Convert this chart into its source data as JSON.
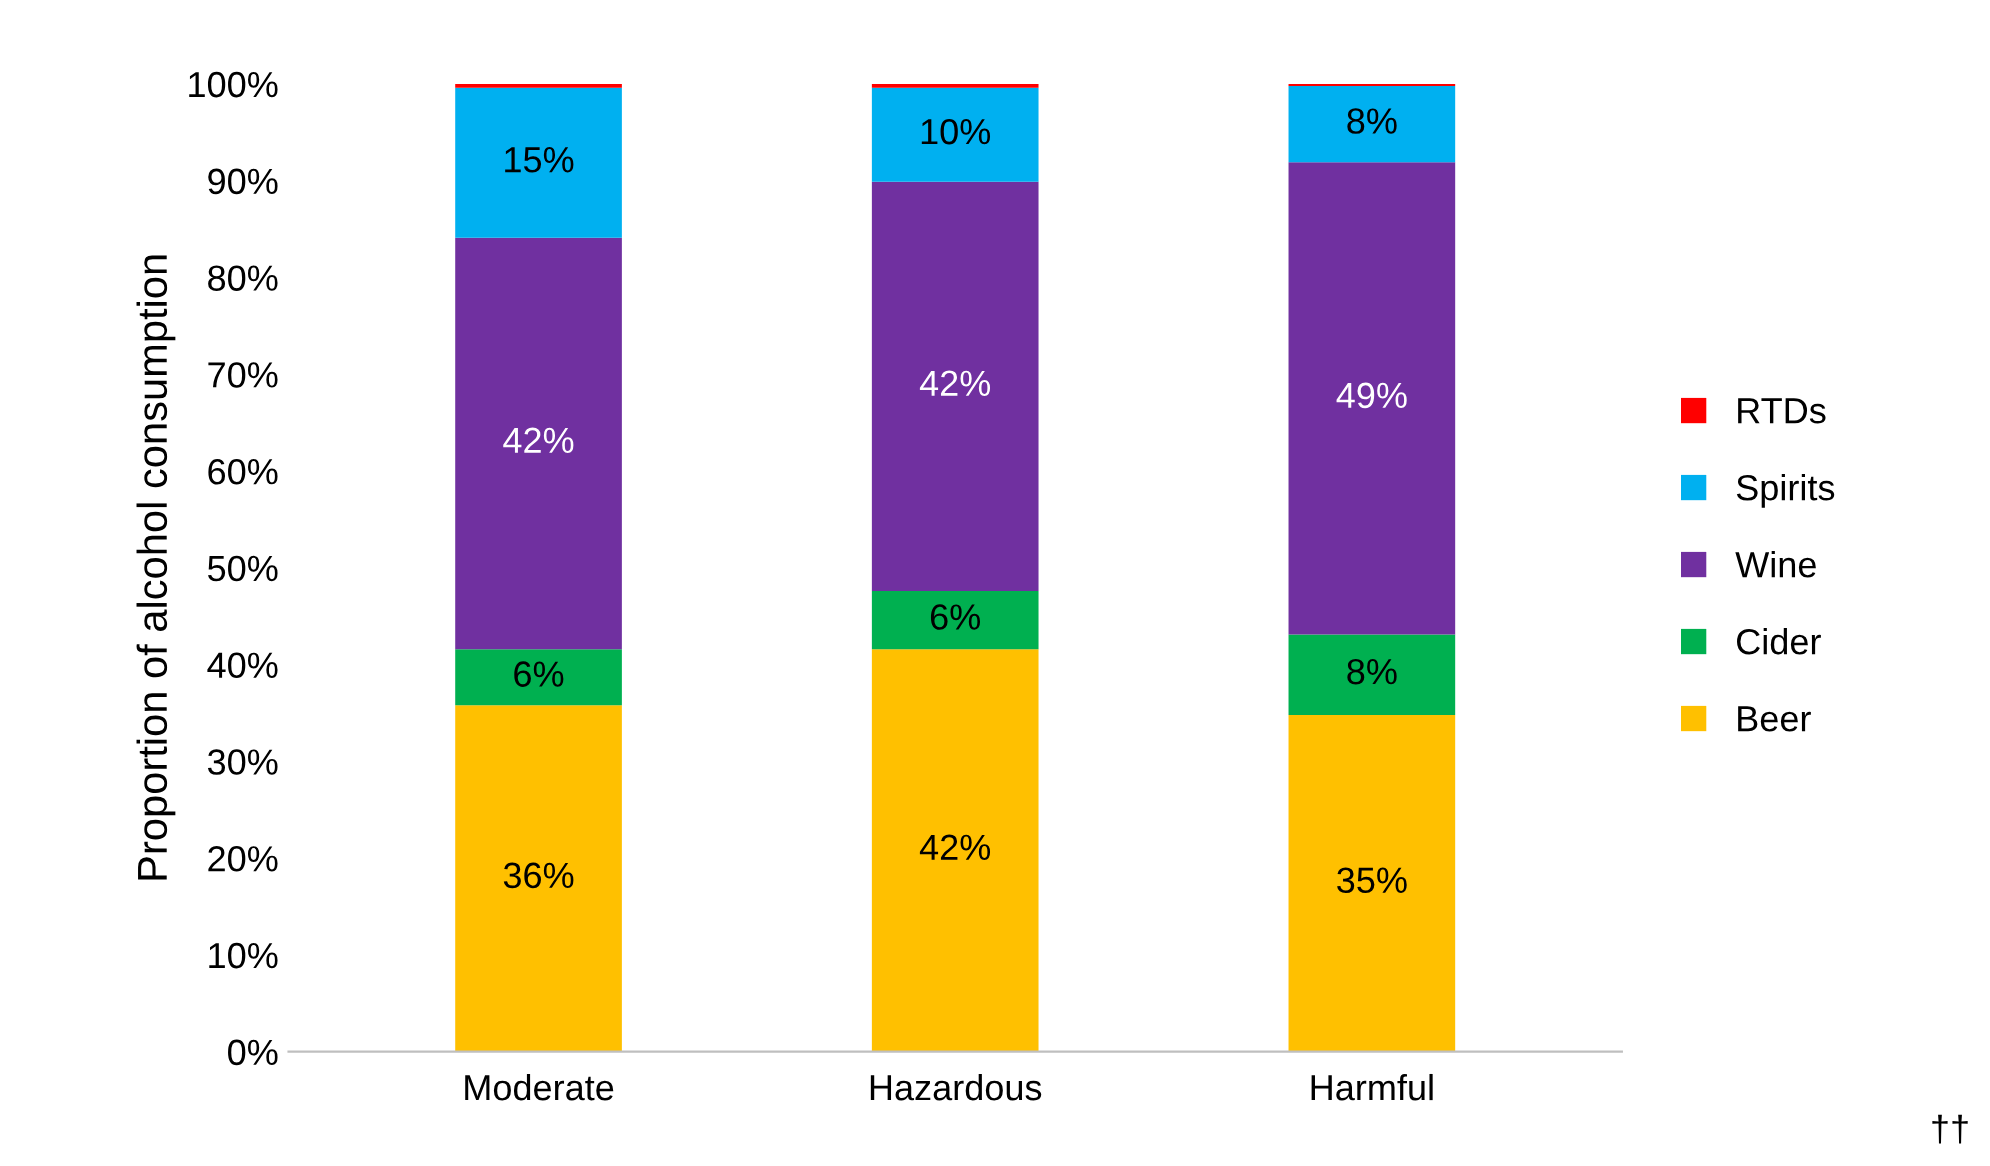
{
  "chart_data": {
    "type": "bar",
    "stacked": true,
    "ylabel": "Proportion of alcohol consumption",
    "categories": [
      "Moderate",
      "Hazardous",
      "Harmful"
    ],
    "series": [
      {
        "name": "Beer",
        "color": "#ffc000",
        "values": [
          35.8,
          41.6,
          34.8
        ],
        "value_labels": [
          "36%",
          "42%",
          "35%"
        ]
      },
      {
        "name": "Cider",
        "color": "#00b050",
        "values": [
          5.8,
          6.0,
          8.3
        ],
        "value_labels": [
          "6%",
          "6%",
          "8%"
        ]
      },
      {
        "name": "Wine",
        "color": "#7030a0",
        "values": [
          42.5,
          42.3,
          48.8
        ],
        "value_labels": [
          "42%",
          "42%",
          "49%"
        ]
      },
      {
        "name": "Spirits",
        "color": "#00b0f0",
        "values": [
          15.5,
          9.7,
          7.9
        ],
        "value_labels": [
          "15%",
          "10%",
          "8%"
        ]
      },
      {
        "name": "RTDs",
        "color": "#ff0000",
        "values": [
          0.4,
          0.4,
          0.2
        ],
        "value_labels": [
          null,
          null,
          null
        ]
      }
    ],
    "ylim": [
      0,
      100
    ],
    "yticks": [
      {
        "value": 0,
        "label": "0%"
      },
      {
        "value": 10,
        "label": "10%"
      },
      {
        "value": 20,
        "label": "20%"
      },
      {
        "value": 30,
        "label": "30%"
      },
      {
        "value": 40,
        "label": "40%"
      },
      {
        "value": 50,
        "label": "50%"
      },
      {
        "value": 60,
        "label": "60%"
      },
      {
        "value": 70,
        "label": "70%"
      },
      {
        "value": 80,
        "label": "80%"
      },
      {
        "value": 90,
        "label": "90%"
      },
      {
        "value": 100,
        "label": "100%"
      }
    ],
    "grid": false,
    "legend": "right",
    "annotations": [
      "††"
    ]
  }
}
